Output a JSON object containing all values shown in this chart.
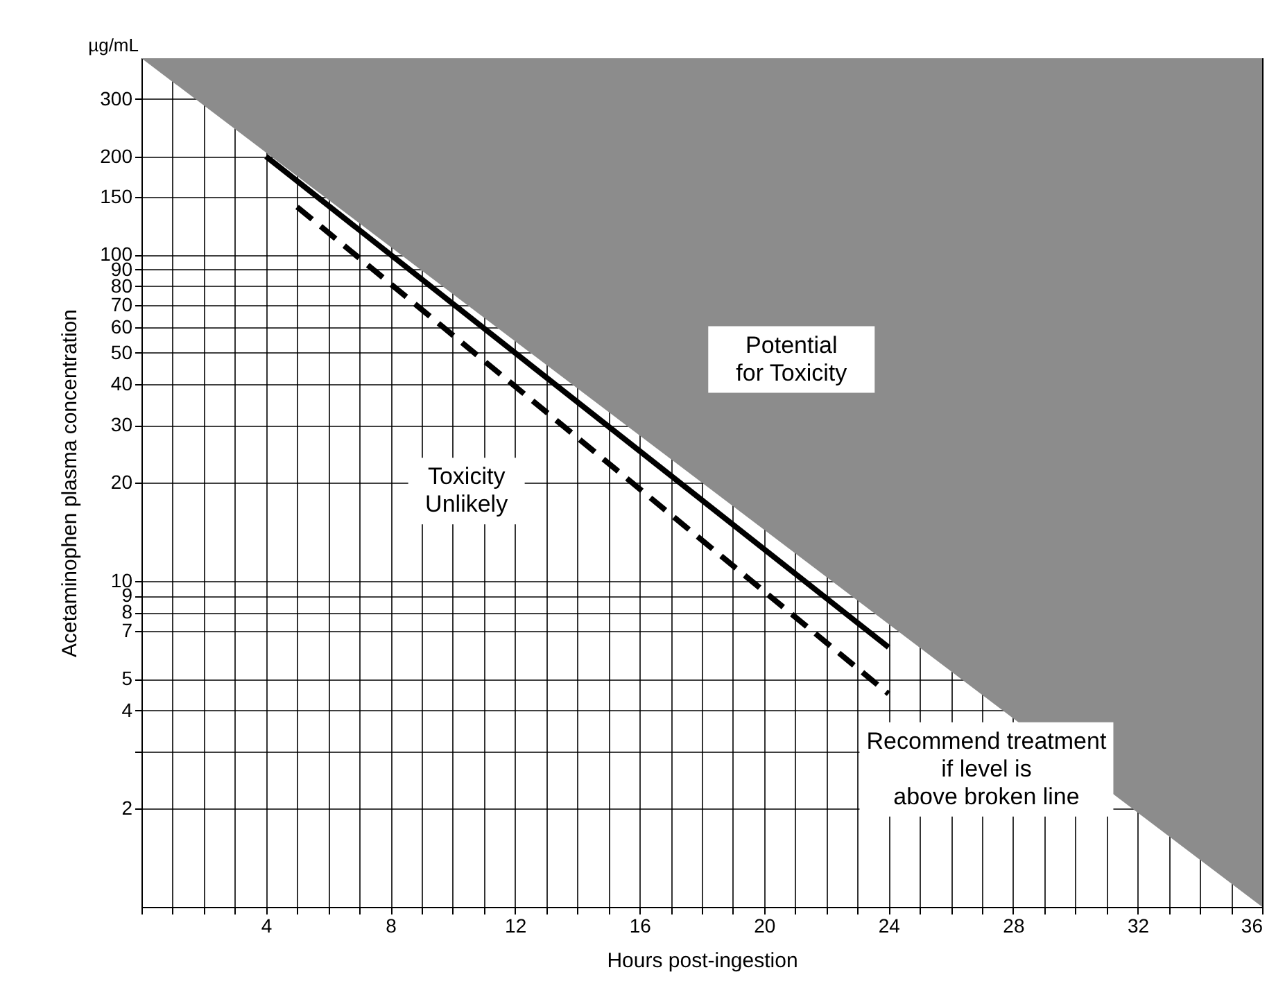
{
  "chart_data": {
    "type": "line",
    "xlabel": "Hours post-ingestion",
    "ylabel": "Acetaminophen plasma concentration",
    "log": "y",
    "xlim": [
      0,
      36
    ],
    "ylim": [
      1,
      400
    ],
    "xticks": [
      {
        "value": 0,
        "label": null
      },
      {
        "value": 1,
        "label": null
      },
      {
        "value": 2,
        "label": null
      },
      {
        "value": 3,
        "label": null
      },
      4,
      {
        "value": 5,
        "label": null
      },
      {
        "value": 6,
        "label": null
      },
      {
        "value": 7,
        "label": null
      },
      8,
      {
        "value": 9,
        "label": null
      },
      {
        "value": 10,
        "label": null
      },
      {
        "value": 11,
        "label": null
      },
      12,
      {
        "value": 13,
        "label": null
      },
      {
        "value": 14,
        "label": null
      },
      {
        "value": 15,
        "label": null
      },
      16,
      {
        "value": 17,
        "label": null
      },
      {
        "value": 18,
        "label": null
      },
      {
        "value": 19,
        "label": null
      },
      20,
      {
        "value": 21,
        "label": null
      },
      {
        "value": 22,
        "label": null
      },
      {
        "value": 23,
        "label": null
      },
      24,
      {
        "value": 25,
        "label": null
      },
      {
        "value": 26,
        "label": null
      },
      {
        "value": 27,
        "label": null
      },
      28,
      {
        "value": 29,
        "label": null
      },
      {
        "value": 30,
        "label": null
      },
      {
        "value": 31,
        "label": null
      },
      32,
      {
        "value": 33,
        "label": null
      },
      {
        "value": 34,
        "label": null
      },
      {
        "value": 35,
        "label": null
      },
      36
    ],
    "yticks": [
      2,
      {
        "value": 3,
        "label": null
      },
      4,
      5,
      7,
      8,
      9,
      10,
      20,
      30,
      40,
      50,
      60,
      70,
      80,
      90,
      100,
      150,
      200,
      300
    ],
    "grid": true,
    "series": [
      {
        "type": "area",
        "color": "#8c8c8c",
        "x": [
          0,
          36
        ],
        "values": [
          400,
          1
        ]
      },
      {
        "color": "#000000",
        "line_style": "solid",
        "x": [
          4,
          24
        ],
        "values": [
          200,
          6.25
        ]
      },
      {
        "color": "#000000",
        "line_style": "dashed",
        "x": [
          5,
          24
        ],
        "values": [
          140,
          4.5
        ]
      }
    ],
    "annotations": [
      "µg/mL",
      "Potential\nfor Toxicity",
      "Toxicity\nUnlikely",
      "Recommend treatment\nif level is\nabove broken line"
    ]
  }
}
